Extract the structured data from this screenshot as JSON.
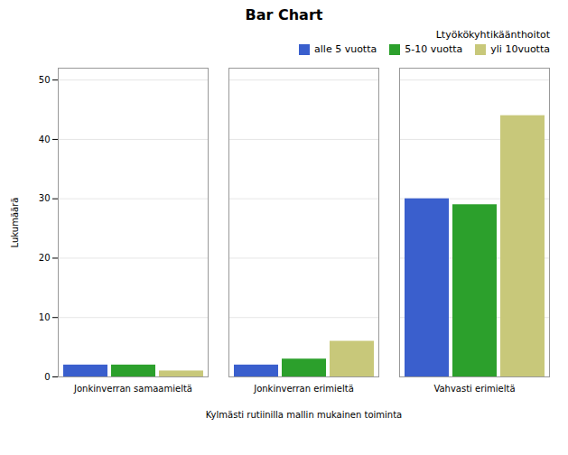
{
  "chart_data": {
    "type": "bar",
    "title": "Bar Chart",
    "xlabel": "Kylmästi rutiinilla mallin mukainen toiminta",
    "ylabel": "Lukumäärä",
    "legend_title": "Ltyökökyhtikäänthoitot",
    "categories": [
      "Jonkinverran samaamieltä",
      "Jonkinverran erimieltä",
      "Vahvasti erimieltä"
    ],
    "series": [
      {
        "name": "alle 5 vuotta",
        "color": "#3a5fcd",
        "values": [
          2,
          2,
          30
        ]
      },
      {
        "name": "5-10 vuotta",
        "color": "#2ca02c",
        "values": [
          2,
          3,
          29
        ]
      },
      {
        "name": "yli 10vuotta",
        "color": "#c8c87a",
        "values": [
          1,
          6,
          44
        ]
      }
    ],
    "ylim": [
      0,
      52
    ],
    "yticks": [
      0,
      10,
      20,
      30,
      40,
      50
    ],
    "grid": true,
    "legend": "upper right"
  }
}
